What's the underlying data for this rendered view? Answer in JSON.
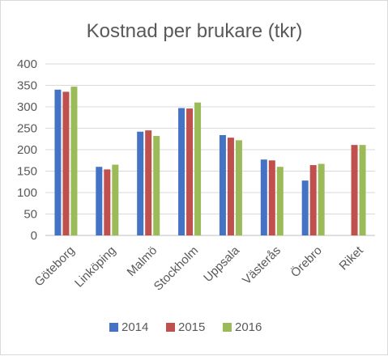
{
  "chart_data": {
    "type": "bar",
    "title": "Kostnad per brukare (tkr)",
    "categories": [
      "Göteborg",
      "Linköping",
      "Malmö",
      "Stockholm",
      "Uppsala",
      "Västerås",
      "Örebro",
      "Riket"
    ],
    "series": [
      {
        "name": "2014",
        "color": "#4472c4",
        "values": [
          340,
          160,
          242,
          297,
          234,
          177,
          128,
          null
        ]
      },
      {
        "name": "2015",
        "color": "#c0504d",
        "values": [
          335,
          154,
          245,
          296,
          228,
          175,
          164,
          211
        ]
      },
      {
        "name": "2016",
        "color": "#9bbb59",
        "values": [
          347,
          165,
          232,
          310,
          222,
          160,
          167,
          211
        ]
      }
    ],
    "ylim": [
      0,
      400
    ],
    "yticks": [
      "0",
      "50",
      "100",
      "150",
      "200",
      "250",
      "300",
      "350",
      "400"
    ],
    "grid": true,
    "legend": "bottom",
    "xlabel": "",
    "ylabel": ""
  }
}
